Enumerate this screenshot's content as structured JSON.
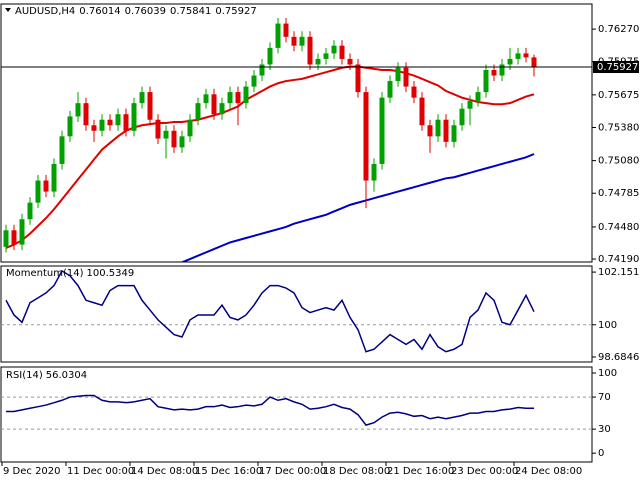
{
  "chart_data": [
    {
      "type": "candlestick",
      "title": "AUDUSD,H4",
      "up_color": "#00a000",
      "down_color": "#e00000",
      "x": [
        "9 Dec 2020",
        null,
        null,
        null,
        null,
        null,
        null,
        null,
        "11 Dec 00:00",
        null,
        null,
        null,
        null,
        null,
        null,
        null,
        "14 Dec 08:00",
        null,
        null,
        null,
        null,
        null,
        null,
        null,
        "15 Dec 16:00",
        null,
        null,
        null,
        null,
        null,
        null,
        null,
        "17 Dec 00:00",
        null,
        null,
        null,
        null,
        null,
        null,
        null,
        "18 Dec 08:00",
        null,
        null,
        null,
        null,
        null,
        null,
        null,
        "21 Dec 16:00",
        null,
        null,
        null,
        null,
        null,
        null,
        null,
        "23 Dec 00:00",
        null,
        null,
        null,
        null,
        null,
        null,
        null,
        "24 Dec 08:00",
        null,
        null
      ],
      "open": [
        0.743,
        0.7445,
        0.7432,
        0.7455,
        0.747,
        0.749,
        0.748,
        0.7505,
        0.753,
        0.7548,
        0.756,
        0.754,
        0.7535,
        0.7545,
        0.754,
        0.755,
        0.7535,
        0.756,
        0.757,
        0.7545,
        0.7528,
        0.7535,
        0.752,
        0.753,
        0.7545,
        0.756,
        0.7568,
        0.755,
        0.756,
        0.757,
        0.756,
        0.7575,
        0.7585,
        0.7595,
        0.761,
        0.7632,
        0.762,
        0.7612,
        0.762,
        0.7595,
        0.76,
        0.7605,
        0.7612,
        0.76,
        0.7595,
        0.757,
        0.749,
        0.7505,
        0.7565,
        0.758,
        0.7592,
        0.7575,
        0.7565,
        0.754,
        0.753,
        0.7545,
        0.7525,
        0.754,
        0.7555,
        0.7562,
        0.757,
        0.759,
        0.7585,
        0.7595,
        0.76,
        0.7605,
        0.76014
      ],
      "high": [
        0.745,
        0.745,
        0.746,
        0.7475,
        0.7495,
        0.7495,
        0.751,
        0.7535,
        0.7553,
        0.757,
        0.7565,
        0.7545,
        0.755,
        0.755,
        0.7555,
        0.7555,
        0.7565,
        0.7575,
        0.7575,
        0.755,
        0.754,
        0.754,
        0.7535,
        0.755,
        0.7565,
        0.7573,
        0.7573,
        0.7565,
        0.7575,
        0.7575,
        0.758,
        0.759,
        0.76,
        0.7615,
        0.7637,
        0.7637,
        0.7625,
        0.7625,
        0.7625,
        0.7605,
        0.761,
        0.7617,
        0.7617,
        0.7605,
        0.76,
        0.7575,
        0.751,
        0.757,
        0.7585,
        0.7597,
        0.7597,
        0.758,
        0.757,
        0.7545,
        0.755,
        0.755,
        0.7545,
        0.756,
        0.7567,
        0.7575,
        0.7595,
        0.7595,
        0.76,
        0.761,
        0.761,
        0.761,
        0.76039
      ],
      "low": [
        0.7425,
        0.7427,
        0.7427,
        0.745,
        0.7465,
        0.7475,
        0.7475,
        0.75,
        0.7525,
        0.7543,
        0.7535,
        0.7525,
        0.753,
        0.7535,
        0.7535,
        0.753,
        0.753,
        0.7555,
        0.754,
        0.7523,
        0.751,
        0.7515,
        0.7515,
        0.7525,
        0.754,
        0.7555,
        0.7545,
        0.7545,
        0.7555,
        0.754,
        0.7555,
        0.757,
        0.758,
        0.759,
        0.7605,
        0.7615,
        0.7607,
        0.7607,
        0.759,
        0.759,
        0.7595,
        0.76,
        0.7595,
        0.759,
        0.7565,
        0.7465,
        0.748,
        0.75,
        0.756,
        0.7575,
        0.757,
        0.756,
        0.7535,
        0.7515,
        0.7525,
        0.752,
        0.752,
        0.7535,
        0.754,
        0.7557,
        0.7565,
        0.758,
        0.758,
        0.759,
        0.7595,
        0.7597,
        0.75841
      ],
      "close": [
        0.7445,
        0.7432,
        0.7455,
        0.747,
        0.749,
        0.748,
        0.7505,
        0.753,
        0.7548,
        0.756,
        0.754,
        0.7535,
        0.7545,
        0.754,
        0.755,
        0.7535,
        0.756,
        0.757,
        0.7545,
        0.7528,
        0.7535,
        0.752,
        0.753,
        0.7545,
        0.756,
        0.7568,
        0.755,
        0.756,
        0.757,
        0.756,
        0.7575,
        0.7585,
        0.7595,
        0.761,
        0.7632,
        0.762,
        0.7612,
        0.762,
        0.7595,
        0.76,
        0.7605,
        0.7612,
        0.76,
        0.7595,
        0.757,
        0.749,
        0.7505,
        0.7565,
        0.758,
        0.7592,
        0.7575,
        0.7565,
        0.754,
        0.753,
        0.7545,
        0.7525,
        0.754,
        0.7555,
        0.7562,
        0.757,
        0.759,
        0.7585,
        0.7595,
        0.76,
        0.7605,
        0.76014,
        0.75927
      ],
      "series": [
        {
          "color": "#e00000",
          "values": [
            0.7429,
            0.7432,
            0.7436,
            0.7442,
            0.7449,
            0.7456,
            0.7464,
            0.7473,
            0.7482,
            0.7491,
            0.75,
            0.7509,
            0.7518,
            0.7524,
            0.753,
            0.7535,
            0.7538,
            0.754,
            0.7541,
            0.7542,
            0.7542,
            0.7543,
            0.7543,
            0.7544,
            0.7545,
            0.7547,
            0.7549,
            0.7551,
            0.7554,
            0.7557,
            0.7563,
            0.7567,
            0.7571,
            0.7575,
            0.7578,
            0.758,
            0.7581,
            0.7582,
            0.7584,
            0.7586,
            0.7588,
            0.759,
            0.7592,
            0.7593,
            0.7593,
            0.7592,
            0.7591,
            0.759,
            0.759,
            0.7589,
            0.7587,
            0.7585,
            0.7582,
            0.7579,
            0.7576,
            0.7571,
            0.7568,
            0.7565,
            0.7563,
            0.7561,
            0.756,
            0.7559,
            0.7559,
            0.756,
            0.7563,
            0.7566,
            0.7568
          ]
        },
        {
          "color": "#0000c0",
          "values": [
            null,
            null,
            null,
            null,
            null,
            null,
            null,
            null,
            null,
            null,
            null,
            null,
            null,
            null,
            null,
            null,
            null,
            null,
            null,
            null,
            null,
            null,
            0.7416,
            0.7419,
            0.7422,
            0.7425,
            0.7428,
            0.7431,
            0.7434,
            0.7436,
            0.7438,
            0.744,
            0.7442,
            0.7444,
            0.7446,
            0.7448,
            0.7451,
            0.7453,
            0.7455,
            0.7457,
            0.7459,
            0.7462,
            0.7465,
            0.7468,
            0.747,
            0.7472,
            0.7474,
            0.7476,
            0.7478,
            0.748,
            0.7482,
            0.7484,
            0.7486,
            0.7488,
            0.749,
            0.7492,
            0.7493,
            0.7495,
            0.7497,
            0.7499,
            0.7501,
            0.7503,
            0.7505,
            0.7507,
            0.7509,
            0.7511,
            0.7514
          ]
        }
      ],
      "ylim": [
        0.74163,
        0.76497
      ],
      "yticks": [
        {
          "value": 0.7627,
          "label": "0.76270"
        },
        {
          "value": 0.75975,
          "label": "0.75975"
        },
        {
          "value": 0.75675,
          "label": "0.75675"
        },
        {
          "value": 0.7538,
          "label": "0.75380"
        },
        {
          "value": 0.7508,
          "label": "0.75080"
        },
        {
          "value": 0.74785,
          "label": "0.74785"
        },
        {
          "value": 0.7448,
          "label": "0.74480"
        },
        {
          "value": 0.7419,
          "label": "0.74190"
        }
      ]
    },
    {
      "type": "line",
      "title": "Momentum(14)",
      "color": "#000080",
      "values": [
        101.0,
        100.4,
        100.1,
        100.9,
        101.1,
        101.3,
        101.6,
        102.2,
        102.0,
        101.6,
        101.0,
        100.9,
        100.8,
        101.4,
        101.6,
        101.6,
        101.6,
        101.0,
        100.6,
        100.2,
        99.9,
        99.6,
        99.5,
        100.2,
        100.4,
        100.4,
        100.4,
        100.8,
        100.3,
        100.2,
        100.4,
        100.8,
        101.3,
        101.6,
        101.6,
        101.5,
        101.3,
        100.7,
        100.5,
        100.6,
        100.7,
        100.6,
        101.0,
        100.3,
        99.8,
        98.9,
        99.0,
        99.3,
        99.6,
        99.4,
        99.2,
        99.4,
        99.0,
        99.6,
        99.1,
        98.9,
        99.0,
        99.2,
        100.3,
        100.6,
        101.3,
        101.0,
        100.1,
        100.0,
        100.6,
        101.2,
        100.5349
      ],
      "ylim": [
        98.48,
        102.4
      ],
      "yticks": [
        102.1513,
        100,
        98.6846
      ],
      "levels": [
        100
      ]
    },
    {
      "type": "line",
      "title": "RSI(14)",
      "color": "#000080",
      "values": [
        52,
        52,
        54,
        56,
        58,
        60,
        63,
        66,
        70,
        71,
        72,
        72,
        66,
        64,
        64,
        63,
        64,
        66,
        68,
        58,
        56,
        54,
        55,
        54,
        55,
        58,
        58,
        60,
        57,
        58,
        60,
        59,
        61,
        70,
        66,
        68,
        64,
        61,
        55,
        56,
        58,
        61,
        57,
        55,
        48,
        35,
        38,
        45,
        50,
        51,
        49,
        46,
        47,
        43,
        45,
        43,
        45,
        47,
        50,
        50,
        52,
        52,
        54,
        55,
        57,
        56,
        56.0304
      ],
      "ylim": [
        -11,
        107.5
      ],
      "yticks": [
        100,
        70,
        30,
        0
      ],
      "levels": [
        70,
        30
      ]
    }
  ]
}
